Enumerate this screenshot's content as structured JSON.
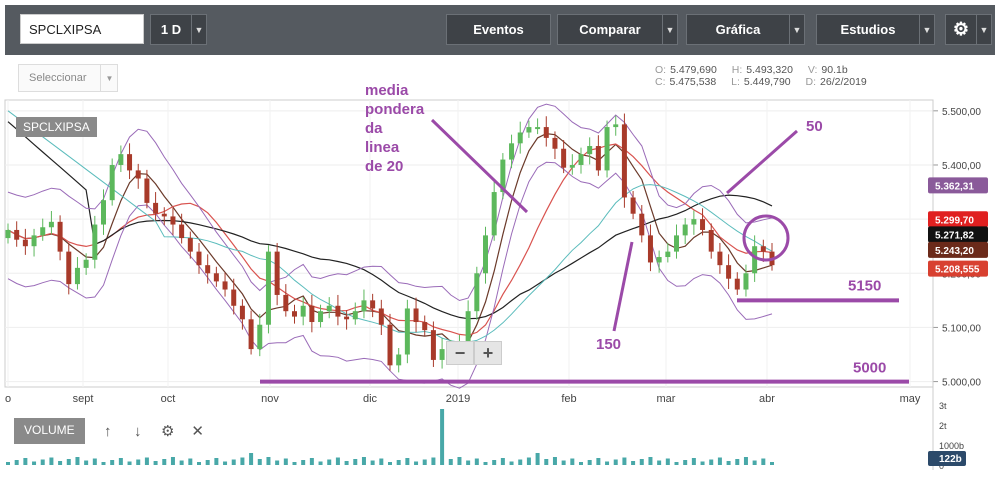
{
  "toolbar": {
    "symbol": "SPCLXIPSA",
    "period": "1 D",
    "eventos": "Eventos",
    "comparar": "Comparar",
    "grafica": "Gráfica",
    "estudios": "Estudios"
  },
  "subbar": {
    "select_label": "Seleccionar",
    "ohlc": {
      "O": "5.479,690",
      "H": "5.493,320",
      "V": "90.1b",
      "C": "5.475,538",
      "L": "5.449,790",
      "date": "26/2/2019"
    }
  },
  "volume_panel": {
    "label": "VOLUME",
    "current": "122b"
  },
  "zoom": {
    "minus": "−",
    "plus": "+"
  },
  "colors": {
    "up": "#5cb85c",
    "down": "#a83a2a",
    "ma20": "#6b3a2a",
    "ma50": "#d9534f",
    "ma150": "#222222",
    "bb": "#9a6bb8",
    "teal": "#5bbcbc",
    "annotation": "#9b4aa8"
  },
  "chart_data": {
    "type": "line",
    "title": "SPCLXIPSA",
    "ylim": [
      4990,
      5520
    ],
    "y_ticks": [
      "5.500,00",
      "5.400,00",
      "5.300,00",
      "5.200,00",
      "5.100,00",
      "5.000,00"
    ],
    "x_ticks": [
      "o",
      "sept",
      "oct",
      "nov",
      "dic",
      "2019",
      "feb",
      "mar",
      "abr",
      "may"
    ],
    "price_tags": [
      {
        "label": "5.362,31",
        "value": 5362.31,
        "color": "#8a5a9a"
      },
      {
        "label": "5.299,70",
        "value": 5299.7,
        "color": "#e02020"
      },
      {
        "label": "5.271,82",
        "value": 5271.82,
        "color": "#111111"
      },
      {
        "label": "5.243,20",
        "value": 5243.2,
        "color": "#6b2a1a"
      },
      {
        "label": "5.208,555",
        "value": 5208.555,
        "color": "#d84030"
      }
    ],
    "series": [
      {
        "name": "close",
        "values": [
          5280,
          5262,
          5250,
          5270,
          5285,
          5295,
          5240,
          5180,
          5210,
          5225,
          5290,
          5335,
          5400,
          5420,
          5390,
          5375,
          5330,
          5310,
          5305,
          5290,
          5265,
          5240,
          5215,
          5200,
          5185,
          5170,
          5140,
          5115,
          5060,
          5105,
          5240,
          5160,
          5130,
          5120,
          5140,
          5110,
          5130,
          5140,
          5120,
          5115,
          5130,
          5150,
          5135,
          5105,
          5030,
          5050,
          5135,
          5110,
          5095,
          5040,
          5060,
          5065,
          5070,
          5130,
          5200,
          5270,
          5350,
          5410,
          5440,
          5460,
          5470,
          5470,
          5450,
          5430,
          5395,
          5400,
          5420,
          5435,
          5390,
          5470,
          5475,
          5340,
          5310,
          5270,
          5220,
          5230,
          5240,
          5270,
          5290,
          5300,
          5280,
          5240,
          5215,
          5190,
          5170,
          5200,
          5250,
          5240,
          5215
        ]
      }
    ],
    "volume_ylim": [
      0,
      3
    ],
    "volume_ticks": [
      "3t",
      "2t",
      "1000b",
      "0"
    ],
    "annotations": [
      {
        "text": "media pondera da linea de 20"
      },
      {
        "text": "50"
      },
      {
        "text": "150"
      },
      {
        "text": "5150",
        "value": 5150
      },
      {
        "text": "5000",
        "value": 5000
      }
    ]
  }
}
